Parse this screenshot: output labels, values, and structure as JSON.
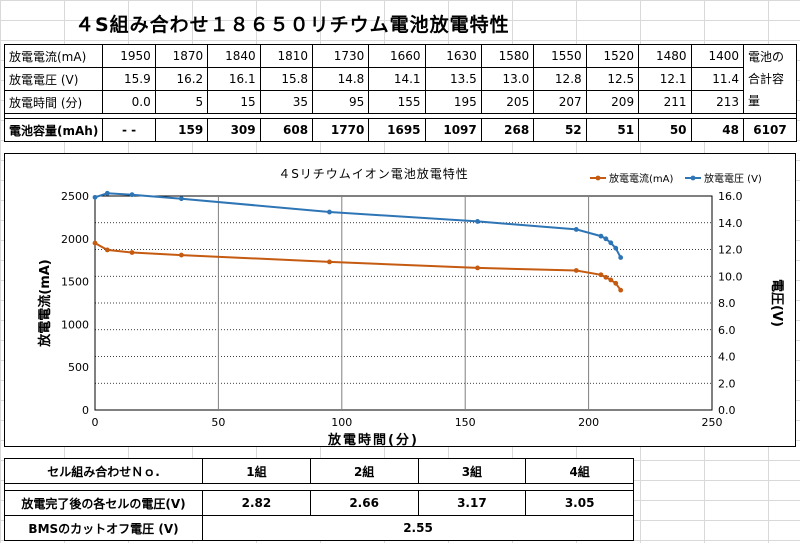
{
  "title": "４S組み合わせ１８６５０リチウム電池放電特性",
  "table": {
    "rows": [
      {
        "label": "放電電流(mA)",
        "values": [
          "1950",
          "1870",
          "1840",
          "1810",
          "1730",
          "1660",
          "1630",
          "1580",
          "1550",
          "1520",
          "1480",
          "1400"
        ]
      },
      {
        "label": "放電電圧 (V)",
        "values": [
          "15.9",
          "16.2",
          "16.1",
          "15.8",
          "14.8",
          "14.1",
          "13.5",
          "13.0",
          "12.8",
          "12.5",
          "12.1",
          "11.4"
        ]
      },
      {
        "label": "放電時間 (分)",
        "values": [
          "0.0",
          "5",
          "15",
          "35",
          "95",
          "155",
          "195",
          "205",
          "207",
          "209",
          "211",
          "213"
        ]
      }
    ],
    "total_label": "電池の合計容量",
    "capacity": {
      "label": "電池容量(mAh)",
      "values": [
        "- -",
        "159",
        "309",
        "608",
        "1770",
        "1695",
        "1097",
        "268",
        "52",
        "51",
        "50",
        "48"
      ],
      "total": "6107"
    }
  },
  "chart_data": {
    "type": "line",
    "title": "４Sリチウムイオン電池放電特性",
    "xlabel": "放電時間(分)",
    "ylabel_left": "放電電流(mA)",
    "ylabel_right": "電圧(V)",
    "xlim": [
      0,
      250
    ],
    "ylim_left": [
      0,
      2500
    ],
    "ylim_right": [
      0.0,
      16.0
    ],
    "xticks": [
      "0",
      "50",
      "100",
      "150",
      "200",
      "250"
    ],
    "yticks_left": [
      "0",
      "500",
      "1000",
      "1500",
      "2000",
      "2500"
    ],
    "yticks_right": [
      "0.0",
      "2.0",
      "4.0",
      "6.0",
      "8.0",
      "10.0",
      "12.0",
      "14.0",
      "16.0"
    ],
    "legend_position": "top-right",
    "x": [
      0,
      5,
      15,
      35,
      95,
      155,
      195,
      205,
      207,
      209,
      211,
      213
    ],
    "series": [
      {
        "name": "放電電流(mA)",
        "axis": "left",
        "color": "#c55a11",
        "values": [
          1950,
          1870,
          1840,
          1810,
          1730,
          1660,
          1630,
          1580,
          1550,
          1520,
          1480,
          1400
        ]
      },
      {
        "name": "放電電圧 (V)",
        "axis": "right",
        "color": "#2e75b6",
        "values": [
          15.9,
          16.2,
          16.1,
          15.8,
          14.8,
          14.1,
          13.5,
          13.0,
          12.8,
          12.5,
          12.1,
          11.4
        ]
      }
    ],
    "grid": true
  },
  "bottom": {
    "header": {
      "label": "セル組み合わせＮｏ.",
      "cols": [
        "1組",
        "2組",
        "3組",
        "4組"
      ]
    },
    "voltage": {
      "label": "放電完了後の各セルの電圧(V)",
      "values": [
        "2.82",
        "2.66",
        "3.17",
        "3.05"
      ]
    },
    "cutoff": {
      "label": "BMSのカットオフ電圧 (V)",
      "value": "2.55"
    }
  }
}
